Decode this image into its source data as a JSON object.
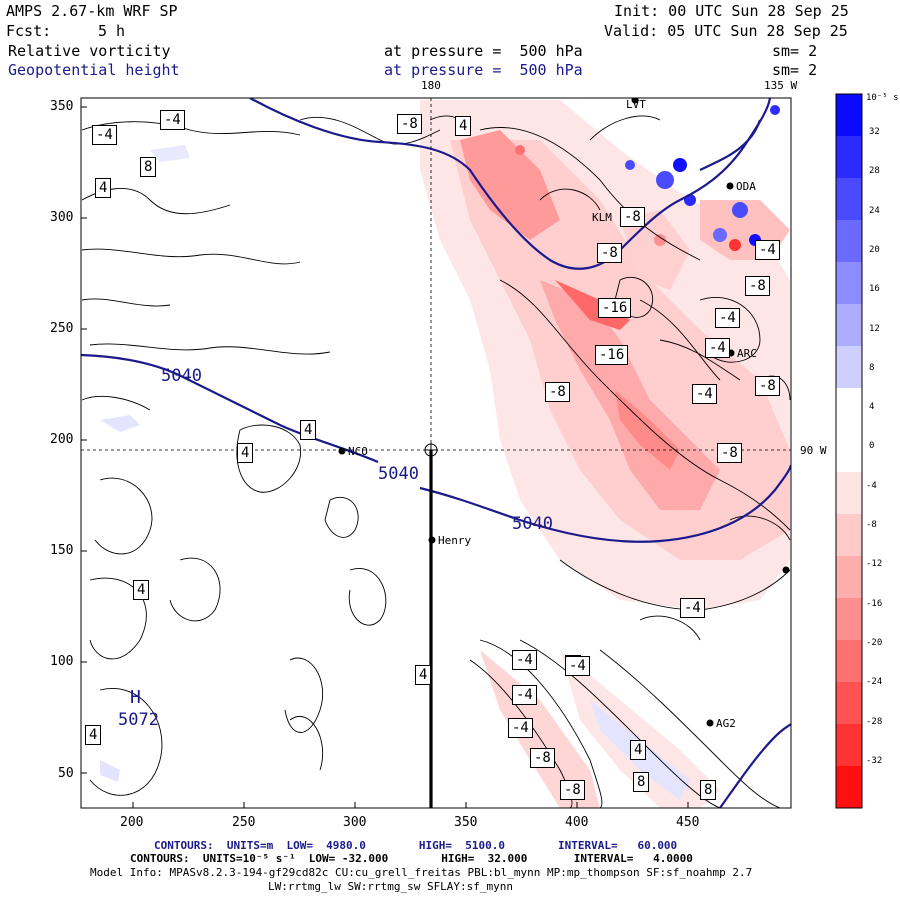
{
  "header": {
    "model": "AMPS 2.67-km WRF SP",
    "init": "Init: 00 UTC Sun 28 Sep 25",
    "fcst_label": "Fcst:",
    "fcst_value": "5 h",
    "valid": "Valid: 05 UTC Sun 28 Sep 25",
    "field1": "Relative vorticity",
    "field1_level": "at pressure =  500 hPa",
    "field1_sm": "sm= 2",
    "field2": "Geopotential height",
    "field2_level": "at pressure =  500 hPa",
    "field2_sm": "sm= 2"
  },
  "map": {
    "lon_label_top_180": "180",
    "lon_label_top_135": "135 W",
    "lon_label_right_90": "90 W",
    "high_letter": "H",
    "high_value": "5072",
    "stations": [
      "NCO",
      "Henry",
      "ARC",
      "AG2",
      "LVT",
      "ODA",
      "KLM"
    ],
    "x_ticks": [
      "200",
      "250",
      "300",
      "350",
      "400",
      "450"
    ],
    "y_ticks": [
      "350",
      "300",
      "250",
      "200",
      "150",
      "100",
      "50"
    ],
    "height_labels": [
      "5040",
      "5040",
      "5040"
    ],
    "vort_labels": [
      "-4",
      "-4",
      "8",
      "4",
      "-8",
      "4",
      "-8",
      "-8",
      "-4",
      "-16",
      "-16",
      "-8",
      "-4",
      "-8",
      "-4",
      "-4",
      "-8",
      "4",
      "4",
      "4",
      "4",
      "4",
      "-4",
      "-4",
      "-4",
      "-4",
      "-8",
      "-8",
      "4",
      "4",
      "8",
      "8",
      "-4",
      "-8"
    ]
  },
  "colorbar": {
    "unit": "10⁻⁵ s⁻¹",
    "labels": [
      "32",
      "28",
      "24",
      "20",
      "16",
      "12",
      "8",
      "4",
      "0",
      "-4",
      "-8",
      "-12",
      "-16",
      "-20",
      "-24",
      "-28",
      "-32"
    ],
    "colors": [
      "#0a0aff",
      "#2b2bff",
      "#4a4aff",
      "#6a6aff",
      "#8c8cff",
      "#adadff",
      "#cfcfff",
      "#ffffff",
      "#ffffff",
      "#ffe4e4",
      "#ffcaca",
      "#ffadad",
      "#ff8f8f",
      "#ff7070",
      "#ff5252",
      "#ff3333",
      "#ff0f0f"
    ]
  },
  "footer": {
    "line1": "CONTOURS:  UNITS=m  LOW=  4980.0        HIGH=  5100.0        INTERVAL=   60.000",
    "line2": "CONTOURS:  UNITS=10⁻⁵ s⁻¹  LOW= -32.000        HIGH=  32.000       INTERVAL=   4.0000",
    "line3": "Model Info: MPASv8.2.3-194-gf29cd82c CU:cu_grell_freitas PBL:bl_mynn MP:mp_thompson SF:sf_noahmp 2.7",
    "line4": "LW:rrtmg_lw SW:rrtmg_sw SFLAY:sf_mynn"
  }
}
